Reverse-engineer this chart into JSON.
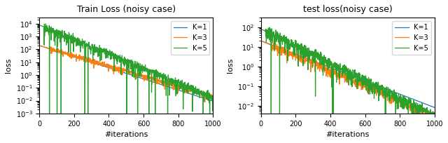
{
  "left_title": "Train Loss (noisy case)",
  "right_title": "test loss(noisy case)",
  "xlabel": "#iterations",
  "ylabel": "loss",
  "colors": [
    "#1f77b4",
    "#ff7f0e",
    "#2ca02c"
  ],
  "labels": [
    "K=1",
    "K=3",
    "K=5"
  ],
  "n_iters": 1000,
  "left_ylim": [
    0.001,
    30000.0
  ],
  "right_ylim": [
    0.004,
    300.0
  ],
  "figsize": [
    6.4,
    2.04
  ],
  "dpi": 100
}
